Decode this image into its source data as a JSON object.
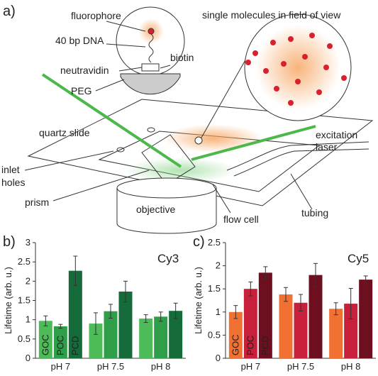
{
  "diagram": {
    "panel": "a)",
    "fluorophore": "fluorophore",
    "dna": "40 bp DNA",
    "neutravidin": "neutravidin",
    "biotin": "biotin",
    "peg": "PEG",
    "field": "single molecules in field of view",
    "slide": "quartz slide",
    "laser": [
      "excitation",
      "laser"
    ],
    "inlet": [
      "inlet",
      "holes"
    ],
    "prism": "prism",
    "objective": "objective",
    "flow_cell": "flow cell",
    "tubing": "tubing"
  },
  "chart_data": [
    {
      "type": "bar",
      "panel": "b)",
      "title": "Cy3",
      "title_color": "#1e7a3a",
      "ylabel": "Lifetime (arb. u.)",
      "categories": [
        "pH 7",
        "pH 7.5",
        "pH 8"
      ],
      "series": [
        {
          "name": "GOC",
          "color": "#4dbb57",
          "values": [
            0.97,
            0.9,
            1.03
          ],
          "errors": [
            0.13,
            0.28,
            0.1
          ]
        },
        {
          "name": "POC",
          "color": "#2e9e48",
          "values": [
            0.83,
            1.22,
            1.08
          ],
          "errors": [
            0.05,
            0.18,
            0.12
          ]
        },
        {
          "name": "PCD",
          "color": "#166b3a",
          "values": [
            2.27,
            1.73,
            1.23
          ],
          "errors": [
            0.38,
            0.27,
            0.2
          ]
        }
      ],
      "ylim": [
        0,
        3
      ],
      "yticks": [
        0,
        0.5,
        1,
        1.5,
        2,
        2.5,
        3
      ]
    },
    {
      "type": "bar",
      "panel": "c)",
      "title": "Cy5",
      "title_color": "#d0202e",
      "ylabel": "Lifetime (arb. u.)",
      "categories": [
        "pH 7",
        "pH 7.5",
        "pH 8"
      ],
      "series": [
        {
          "name": "GOC",
          "color": "#f07132",
          "values": [
            1.0,
            1.38,
            1.07
          ],
          "errors": [
            0.14,
            0.15,
            0.13
          ]
        },
        {
          "name": "POC",
          "color": "#c81f3b",
          "values": [
            1.5,
            1.2,
            1.18
          ],
          "errors": [
            0.15,
            0.18,
            0.33
          ]
        },
        {
          "name": "PCD",
          "color": "#6d0f1e",
          "values": [
            1.85,
            1.8,
            1.7
          ],
          "errors": [
            0.13,
            0.25,
            0.08
          ]
        }
      ],
      "ylim": [
        0,
        2.5
      ],
      "yticks": [
        0,
        0.5,
        1,
        1.5,
        2,
        2.5
      ]
    }
  ]
}
